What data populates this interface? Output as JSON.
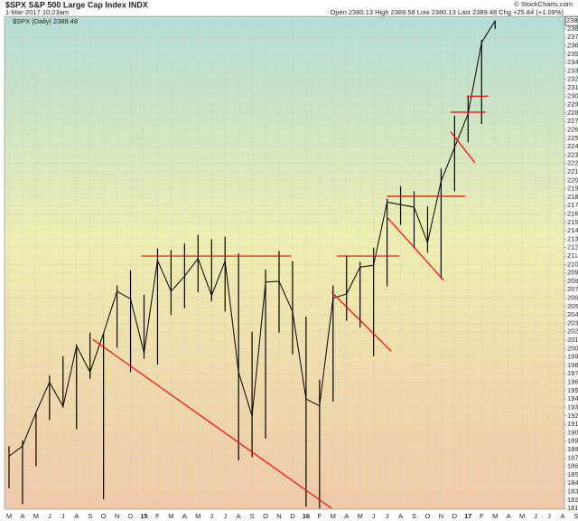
{
  "chart_data": {
    "type": "line",
    "title": "$SPX S&P 500 Large Cap Index INDX",
    "subtitle": "1-Mar-2017 10:23am",
    "quote": "Open 2380.13 High 2389.58 Low 2380.13 Last 2389.48 Chg +25.84 (+1.09%)",
    "credit": "© StockCharts.com",
    "categories": [
      "M",
      "A",
      "M",
      "J",
      "J",
      "A",
      "S",
      "O",
      "N",
      "D",
      "15",
      "F",
      "M",
      "A",
      "M",
      "J",
      "J",
      "A",
      "S",
      "O",
      "N",
      "D",
      "16",
      "F",
      "M",
      "A",
      "M",
      "J",
      "J",
      "A",
      "S",
      "O",
      "N",
      "D",
      "17",
      "F",
      "M",
      "A",
      "M",
      "J",
      "J",
      "A",
      "S",
      "O"
    ],
    "series": [
      {
        "name": "$SPX (Daily) 2389.48",
        "color": "#000000",
        "values": [
          1872,
          1884,
          1924,
          1960,
          1931,
          2003,
          1972,
          2018,
          2068,
          2059,
          1995,
          2105,
          2068,
          2086,
          2107,
          2063,
          2104,
          1972,
          1920,
          2079,
          2080,
          2044,
          1940,
          1932,
          2060,
          2065,
          2097,
          2099,
          2174,
          2171,
          2168,
          2126,
          2199,
          2239,
          2279,
          2364,
          2389.48,
          null,
          null,
          null,
          null,
          null,
          null,
          null
        ]
      }
    ],
    "high": [
      1884,
      1891,
      1924,
      1968,
      1991,
      2005,
      2019,
      2018,
      2075,
      2093,
      2064,
      2119,
      2117,
      2125,
      2135,
      2130,
      2133,
      2113,
      2020,
      2094,
      2116,
      2104,
      2038,
      1963,
      2075,
      2111,
      2103,
      2120,
      2178,
      2193,
      2187,
      2169,
      2214,
      2277,
      2300,
      2367,
      2390,
      null,
      null,
      null,
      null,
      null,
      null,
      null
    ],
    "low": [
      1834,
      1815,
      1860,
      1915,
      1930,
      1904,
      1964,
      1821,
      2001,
      1972,
      1988,
      1981,
      2040,
      2048,
      2067,
      2056,
      2044,
      1867,
      1871,
      1893,
      2019,
      1993,
      1812,
      1810,
      1937,
      2033,
      2025,
      1991,
      2074,
      2147,
      2119,
      2114,
      2083,
      2187,
      2245,
      2267,
      2380,
      null,
      null,
      null,
      null,
      null,
      null,
      null
    ],
    "trend_lines": {
      "color": "#ff0000",
      "lines": [
        {
          "x": [
            6.2,
            23.9
          ],
          "y": [
            2011,
            1810
          ]
        },
        {
          "x": [
            9.8,
            20.9
          ],
          "y": [
            2110,
            2110
          ]
        },
        {
          "x": [
            24.3,
            28.9
          ],
          "y": [
            2110,
            2110
          ]
        },
        {
          "x": [
            23.9,
            28.3
          ],
          "y": [
            2067,
            1997
          ]
        },
        {
          "x": [
            28.0,
            33.8
          ],
          "y": [
            2181,
            2181
          ]
        },
        {
          "x": [
            28.0,
            32.2
          ],
          "y": [
            2156,
            2081
          ]
        },
        {
          "x": [
            32.7,
            34.5
          ],
          "y": [
            2258,
            2221
          ]
        },
        {
          "x": [
            32.7,
            35.3
          ],
          "y": [
            2281,
            2281
          ]
        },
        {
          "x": [
            33.9,
            35.5
          ],
          "y": [
            2300,
            2300
          ]
        }
      ]
    },
    "ylim": [
      1809,
      2395
    ],
    "yticks": [
      1810,
      1820,
      1830,
      1840,
      1850,
      1860,
      1870,
      1880,
      1890,
      1900,
      1910,
      1920,
      1930,
      1940,
      1950,
      1960,
      1970,
      1980,
      1990,
      2000,
      2010,
      2020,
      2030,
      2040,
      2050,
      2060,
      2070,
      2080,
      2090,
      2100,
      2110,
      2120,
      2130,
      2140,
      2150,
      2160,
      2170,
      2180,
      2190,
      2200,
      2210,
      2220,
      2230,
      2240,
      2250,
      2260,
      2270,
      2280,
      2290,
      2300,
      2310,
      2320,
      2330,
      2340,
      2350,
      2360,
      2370,
      2380
    ],
    "grid": true
  }
}
